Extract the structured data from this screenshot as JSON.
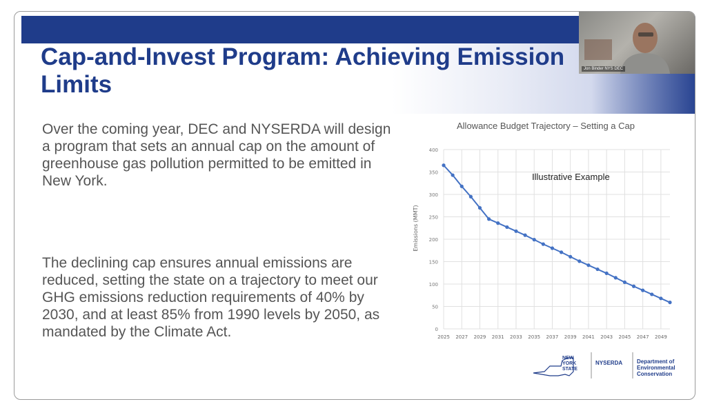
{
  "slide": {
    "title": "Cap-and-Invest Program: Achieving Emission Limits",
    "paragraph1": "Over the coming year, DEC and NYSERDA will design a program that sets an annual cap on the amount of greenhouse gas pollution permitted to be emitted in New York.",
    "paragraph2": "The declining cap ensures annual emissions are reduced, setting the state on a trajectory to meet our GHG emissions reduction requirements of 40% by 2030, and at least 85% from 1990 levels by 2050, as mandated by the Climate Act."
  },
  "webcam": {
    "caption": "Jon Binder NYS DEC"
  },
  "logos": {
    "state": [
      "NEW",
      "YORK",
      "STATE"
    ],
    "nyserda": "NYSERDA",
    "dec": [
      "Department of",
      "Environmental",
      "Conservation"
    ]
  },
  "colors": {
    "title": "#1f3c8a",
    "band": "#1f3c8a",
    "line": "#4472c4",
    "body_text": "#555555"
  },
  "chart_data": {
    "type": "line",
    "title": "Allowance Budget Trajectory – Setting a Cap",
    "annotation": "Illustrative Example",
    "ylabel": "Emissions (MMT)",
    "xlabel": "",
    "ylim": [
      0,
      400
    ],
    "yticks": [
      0,
      50,
      100,
      150,
      200,
      250,
      300,
      350,
      400
    ],
    "xticks": [
      2025,
      2027,
      2029,
      2031,
      2033,
      2035,
      2037,
      2039,
      2041,
      2043,
      2045,
      2047,
      2049
    ],
    "grid": true,
    "legend": "none",
    "series": [
      {
        "x": [
          2025,
          2026,
          2027,
          2028,
          2029,
          2030,
          2031,
          2032,
          2033,
          2034,
          2035,
          2036,
          2037,
          2038,
          2039,
          2040,
          2041,
          2042,
          2043,
          2044,
          2045,
          2046,
          2047,
          2048,
          2049,
          2050
        ],
        "values": [
          365,
          343,
          318,
          295,
          270,
          245,
          236,
          227,
          218,
          209,
          199,
          189,
          180,
          171,
          161,
          151,
          142,
          133,
          124,
          114,
          104,
          95,
          86,
          77,
          68,
          59
        ]
      }
    ]
  }
}
